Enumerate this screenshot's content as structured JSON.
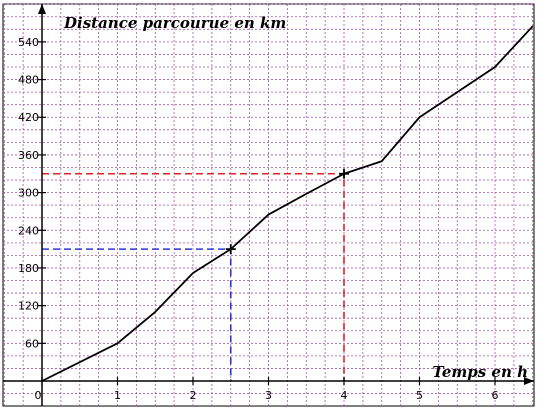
{
  "chart_data": {
    "type": "line",
    "ylabel": "Distance parcourue en km",
    "xlabel": "Temps en h",
    "xlim": [
      0,
      6.5
    ],
    "ylim": [
      0,
      570
    ],
    "x_ticks": [
      0,
      1,
      2,
      3,
      4,
      5,
      6
    ],
    "x_tick_labels": [
      "0",
      "1",
      "2",
      "3",
      "4",
      "5",
      "6"
    ],
    "y_ticks": [
      60,
      120,
      180,
      240,
      300,
      360,
      420,
      480,
      540
    ],
    "y_tick_labels": [
      "60",
      "120",
      "180",
      "240",
      "300",
      "360",
      "420",
      "480",
      "540"
    ],
    "grid": true,
    "grid_minor_x": 0.25,
    "grid_minor_y": 20,
    "colors": {
      "grid": "#a0589e",
      "line": "#000000",
      "marker_blue": "#2a35d4",
      "marker_red": "#e0202a"
    },
    "series": [
      {
        "x": [
          0,
          1,
          1.5,
          2,
          2.5,
          3,
          3.5,
          4,
          4.5,
          5,
          5.5,
          6,
          6.5
        ],
        "y": [
          0,
          60,
          110,
          172,
          210,
          265,
          298,
          330,
          350,
          420,
          460,
          500,
          565
        ]
      }
    ],
    "markers": [
      {
        "x": 2.5,
        "y": 210,
        "color": "#2a35d4"
      },
      {
        "x": 4,
        "y": 330,
        "color": "#e0202a"
      }
    ]
  }
}
